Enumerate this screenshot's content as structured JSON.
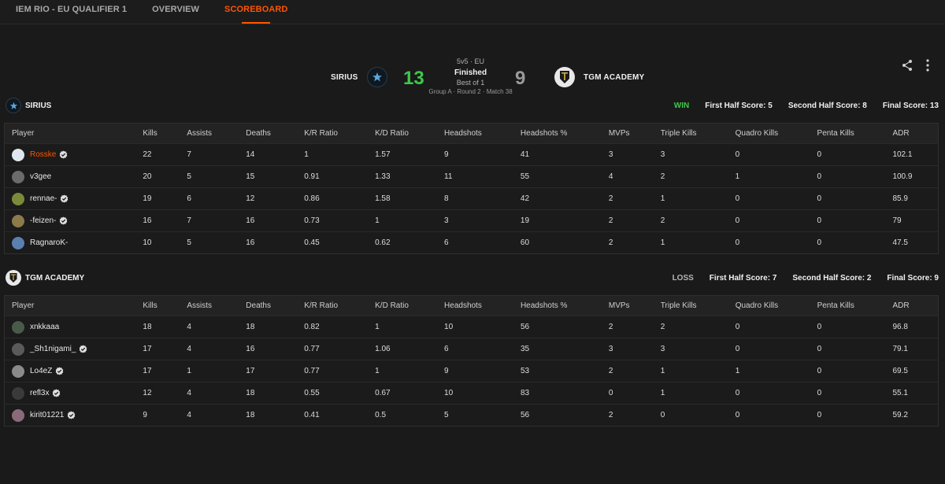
{
  "nav": {
    "tabs": [
      {
        "label": "IEM RIO - EU QUALIFIER 1",
        "active": false
      },
      {
        "label": "OVERVIEW",
        "active": false
      },
      {
        "label": "SCOREBOARD",
        "active": true
      }
    ]
  },
  "match": {
    "team1_name": "SIRIUS",
    "team2_name": "TGM ACADEMY",
    "team1_score": "13",
    "team2_score": "9",
    "format": "5v5 · EU",
    "status": "Finished",
    "best_of": "Best of 1",
    "group_info": "Group A · Round 2 · Match 38"
  },
  "colors": {
    "accent": "#ff5500",
    "win": "#3fc74b",
    "loss": "#9a9a9a",
    "background": "#1a1a1a"
  },
  "icons": {
    "share": "share-icon",
    "more": "more-vertical-icon",
    "verified": "verified-badge-icon"
  },
  "columns": [
    "Player",
    "Kills",
    "Assists",
    "Deaths",
    "K/R Ratio",
    "K/D Ratio",
    "Headshots",
    "Headshots %",
    "MVPs",
    "Triple Kills",
    "Quadro Kills",
    "Penta Kills",
    "ADR"
  ],
  "teams": [
    {
      "name": "SIRIUS",
      "result": "WIN",
      "first_half": "First Half Score: 5",
      "second_half": "Second Half Score: 8",
      "final": "Final Score: 13",
      "players": [
        {
          "name": "Rosske",
          "verified": true,
          "highlight": true,
          "avatar_color": "#dfe6ee",
          "stats": [
            "22",
            "7",
            "14",
            "1",
            "1.57",
            "9",
            "41",
            "3",
            "3",
            "0",
            "0",
            "102.1"
          ]
        },
        {
          "name": "v3gee",
          "verified": false,
          "highlight": false,
          "avatar_color": "#6b6b6b",
          "stats": [
            "20",
            "5",
            "15",
            "0.91",
            "1.33",
            "11",
            "55",
            "4",
            "2",
            "1",
            "0",
            "100.9"
          ]
        },
        {
          "name": "rennae-",
          "verified": true,
          "highlight": false,
          "avatar_color": "#7a8a3a",
          "stats": [
            "19",
            "6",
            "12",
            "0.86",
            "1.58",
            "8",
            "42",
            "2",
            "1",
            "0",
            "0",
            "85.9"
          ]
        },
        {
          "name": "-feizen-",
          "verified": true,
          "highlight": false,
          "avatar_color": "#8c7a4a",
          "stats": [
            "16",
            "7",
            "16",
            "0.73",
            "1",
            "3",
            "19",
            "2",
            "2",
            "0",
            "0",
            "79"
          ]
        },
        {
          "name": "RagnaroK-",
          "verified": false,
          "highlight": false,
          "avatar_color": "#5b7fb0",
          "stats": [
            "10",
            "5",
            "16",
            "0.45",
            "0.62",
            "6",
            "60",
            "2",
            "1",
            "0",
            "0",
            "47.5"
          ]
        }
      ]
    },
    {
      "name": "TGM ACADEMY",
      "result": "LOSS",
      "first_half": "First Half Score: 7",
      "second_half": "Second Half Score: 2",
      "final": "Final Score: 9",
      "players": [
        {
          "name": "xnkkaaa",
          "verified": false,
          "highlight": false,
          "avatar_color": "#4a5a4a",
          "stats": [
            "18",
            "4",
            "18",
            "0.82",
            "1",
            "10",
            "56",
            "2",
            "2",
            "0",
            "0",
            "96.8"
          ]
        },
        {
          "name": "_Sh1nigami_",
          "verified": true,
          "highlight": false,
          "avatar_color": "#5a5a5a",
          "stats": [
            "17",
            "4",
            "16",
            "0.77",
            "1.06",
            "6",
            "35",
            "3",
            "3",
            "0",
            "0",
            "79.1"
          ]
        },
        {
          "name": "Lo4eZ",
          "verified": true,
          "highlight": false,
          "avatar_color": "#8a8a8a",
          "stats": [
            "17",
            "1",
            "17",
            "0.77",
            "1",
            "9",
            "53",
            "2",
            "1",
            "1",
            "0",
            "69.5"
          ]
        },
        {
          "name": "refl3x",
          "verified": true,
          "highlight": false,
          "avatar_color": "#3a3a3a",
          "stats": [
            "12",
            "4",
            "18",
            "0.55",
            "0.67",
            "10",
            "83",
            "0",
            "1",
            "0",
            "0",
            "55.1"
          ]
        },
        {
          "name": "kirit01221",
          "verified": true,
          "highlight": false,
          "avatar_color": "#8a6a7a",
          "stats": [
            "9",
            "4",
            "18",
            "0.41",
            "0.5",
            "5",
            "56",
            "2",
            "0",
            "0",
            "0",
            "59.2"
          ]
        }
      ]
    }
  ]
}
